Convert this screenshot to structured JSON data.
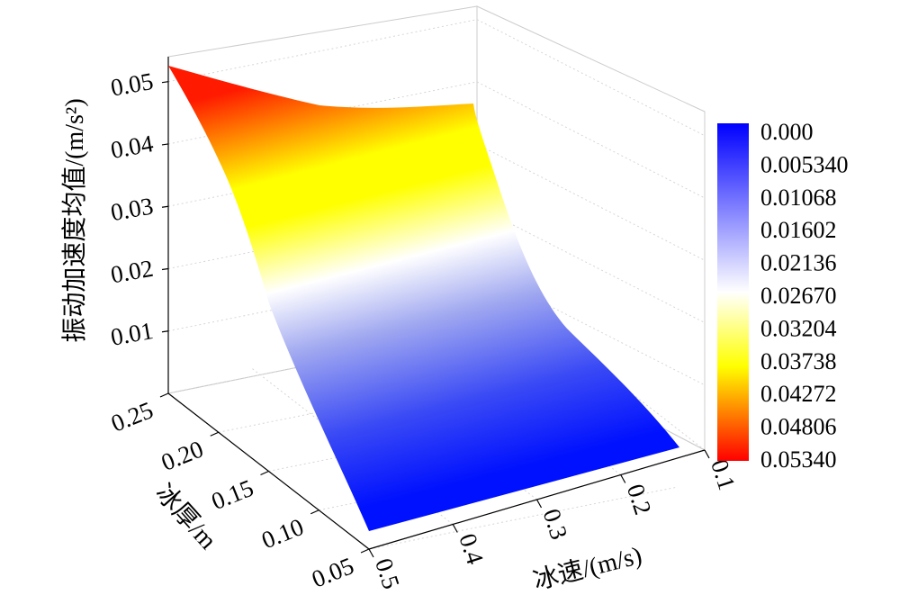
{
  "chart_data": {
    "type": "surface3d",
    "title": "",
    "zlabel": "振动加速度均值/(m/s²)",
    "ice_thickness_label": "冰厚/m",
    "ice_speed_label": "冰速/(m/s)",
    "x_axis": {
      "name": "ice_speed",
      "ticks": [
        0.1,
        0.2,
        0.3,
        0.4,
        0.5
      ],
      "tick_labels": [
        "0.1",
        "0.2",
        "0.3",
        "0.4",
        "0.5"
      ],
      "range": [
        0.1,
        0.5
      ]
    },
    "y_axis": {
      "name": "ice_thickness",
      "ticks": [
        0.05,
        0.1,
        0.15,
        0.2,
        0.25
      ],
      "tick_labels": [
        "0.05",
        "0.10",
        "0.15",
        "0.20",
        "0.25"
      ],
      "range": [
        0.05,
        0.25
      ]
    },
    "z_axis": {
      "ticks": [
        0.01,
        0.02,
        0.03,
        0.04,
        0.05
      ],
      "tick_labels": [
        "0.01",
        "0.02",
        "0.03",
        "0.04",
        "0.05"
      ],
      "range": [
        0.0,
        0.054
      ]
    },
    "corner_values": [
      {
        "ice_speed": 0.5,
        "ice_thickness": 0.25,
        "z": 0.054
      },
      {
        "ice_speed": 0.1,
        "ice_thickness": 0.25,
        "z": 0.046
      },
      {
        "ice_speed": 0.5,
        "ice_thickness": 0.05,
        "z": 0.0
      },
      {
        "ice_speed": 0.1,
        "ice_thickness": 0.05,
        "z": 0.0
      }
    ],
    "colorbar": {
      "labels": [
        "0.000",
        "0.005340",
        "0.01068",
        "0.01602",
        "0.02136",
        "0.02670",
        "0.03204",
        "0.03738",
        "0.04272",
        "0.04806",
        "0.05340"
      ],
      "colors": [
        "#0000ff",
        "#ffffff",
        "#ffff00",
        "#ff0000"
      ]
    }
  }
}
